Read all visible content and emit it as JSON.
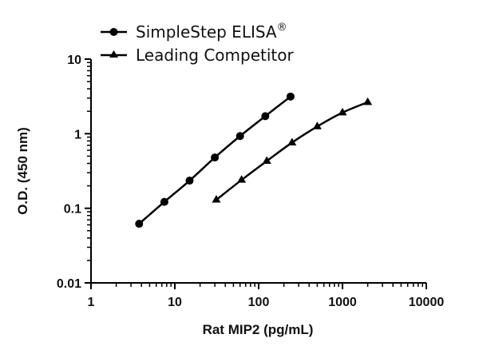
{
  "chart_data": {
    "type": "line",
    "xlabel": "Rat MIP2 (pg/mL)",
    "ylabel": "O.D. (450 nm)",
    "xscale": "log",
    "yscale": "log",
    "xlim": [
      1,
      10000
    ],
    "ylim": [
      0.01,
      10
    ],
    "x_ticks": [
      "1",
      "10",
      "100",
      "1000",
      "10000"
    ],
    "y_ticks": [
      "0.01",
      "0.1",
      "1",
      "10"
    ],
    "legend_position": "top-left",
    "grid": false,
    "series": [
      {
        "name": "SimpleStep ELISA",
        "name_superscript": "®",
        "marker": "circle",
        "color": "#000000",
        "x": [
          3.75,
          7.5,
          15,
          30,
          60,
          120,
          240
        ],
        "y": [
          0.062,
          0.122,
          0.235,
          0.48,
          0.93,
          1.72,
          3.15
        ]
      },
      {
        "name": "Leading Competitor",
        "marker": "triangle",
        "color": "#000000",
        "x": [
          31.25,
          62.5,
          125,
          250,
          500,
          1000,
          2000
        ],
        "y": [
          0.13,
          0.24,
          0.43,
          0.76,
          1.25,
          1.92,
          2.65
        ]
      }
    ]
  }
}
